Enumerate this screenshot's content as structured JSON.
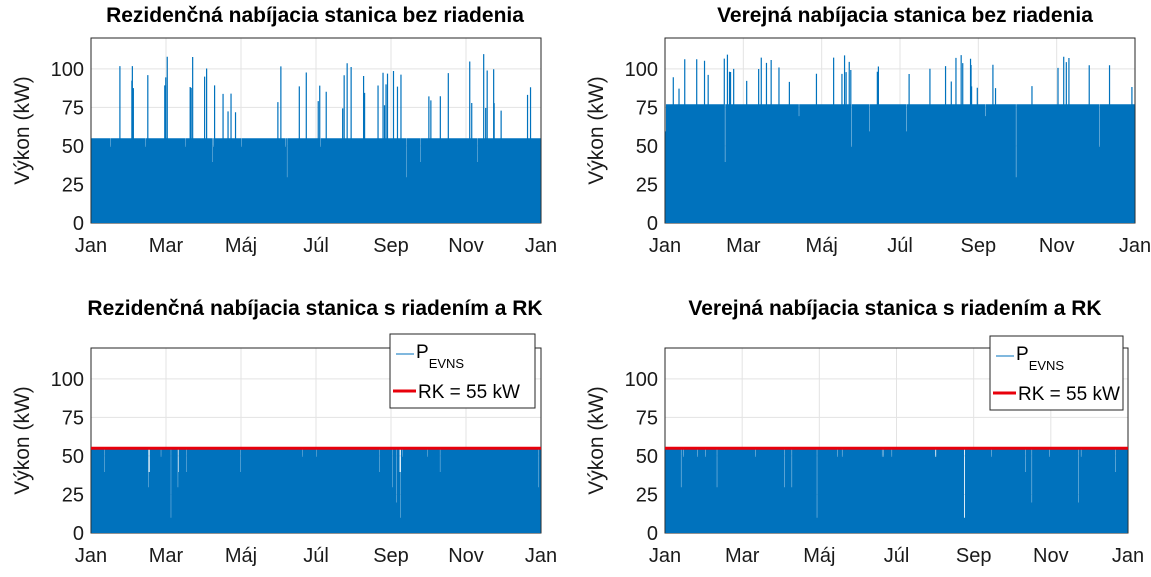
{
  "chart_data": [
    {
      "type": "area",
      "title": "Rezidenčná nabíjacia stanica bez riadenia",
      "ylabel": "Výkon (kW)",
      "xlabel": "",
      "x_ticks": [
        "Jan",
        "Mar",
        "Máj",
        "Júl",
        "Sep",
        "Nov",
        "Jan"
      ],
      "y_ticks": [
        0,
        25,
        50,
        75,
        100
      ],
      "ylim": [
        0,
        120
      ],
      "grid": true,
      "series": [
        {
          "color": "#0072BD",
          "typical_max": 55,
          "peak_max": 110,
          "dense_levels": [
            11,
            22,
            33,
            44,
            55
          ]
        }
      ],
      "legend": null
    },
    {
      "type": "area",
      "title": "Verejná nabíjacia stanica bez riadenia",
      "ylabel": "Výkon (kW)",
      "xlabel": "",
      "x_ticks": [
        "Jan",
        "Mar",
        "Máj",
        "Júl",
        "Sep",
        "Nov",
        "Jan"
      ],
      "y_ticks": [
        0,
        25,
        50,
        75,
        100
      ],
      "ylim": [
        0,
        120
      ],
      "grid": true,
      "series": [
        {
          "color": "#0072BD",
          "typical_max": 77,
          "peak_max": 110,
          "dense_levels": [
            11,
            22,
            33,
            44,
            55,
            66,
            77
          ]
        }
      ],
      "legend": null
    },
    {
      "type": "area",
      "title": "Rezidenčná nabíjacia stanica s riadením a RK",
      "ylabel": "Výkon (kW)",
      "xlabel": "",
      "x_ticks": [
        "Jan",
        "Mar",
        "Máj",
        "Júl",
        "Sep",
        "Nov",
        "Jan"
      ],
      "y_ticks": [
        0,
        25,
        50,
        75,
        100
      ],
      "ylim": [
        0,
        120
      ],
      "grid": true,
      "series": [
        {
          "name": "PEVNS",
          "name_main": "P",
          "name_sub": "EVNS",
          "color": "#0072BD",
          "typical_max": 55,
          "peak_max": 55,
          "dense_levels": [
            11,
            22,
            33,
            44,
            55
          ]
        },
        {
          "name": "RK = 55 kW",
          "color": "#E8000B",
          "constant": 55
        }
      ],
      "legend": "top-right"
    },
    {
      "type": "area",
      "title": "Verejná nabíjacia stanica s riadením a RK",
      "ylabel": "Výkon (kW)",
      "xlabel": "",
      "x_ticks": [
        "Jan",
        "Mar",
        "Máj",
        "Júl",
        "Sep",
        "Nov",
        "Jan"
      ],
      "y_ticks": [
        0,
        25,
        50,
        75,
        100
      ],
      "ylim": [
        0,
        120
      ],
      "grid": true,
      "series": [
        {
          "name": "PEVNS",
          "name_main": "P",
          "name_sub": "EVNS",
          "color": "#0072BD",
          "typical_max": 55,
          "peak_max": 55,
          "dense_levels": [
            11,
            22,
            33,
            44,
            55
          ]
        },
        {
          "name": "RK = 55 kW",
          "color": "#E8000B",
          "constant": 55
        }
      ],
      "legend": "top-right"
    }
  ]
}
